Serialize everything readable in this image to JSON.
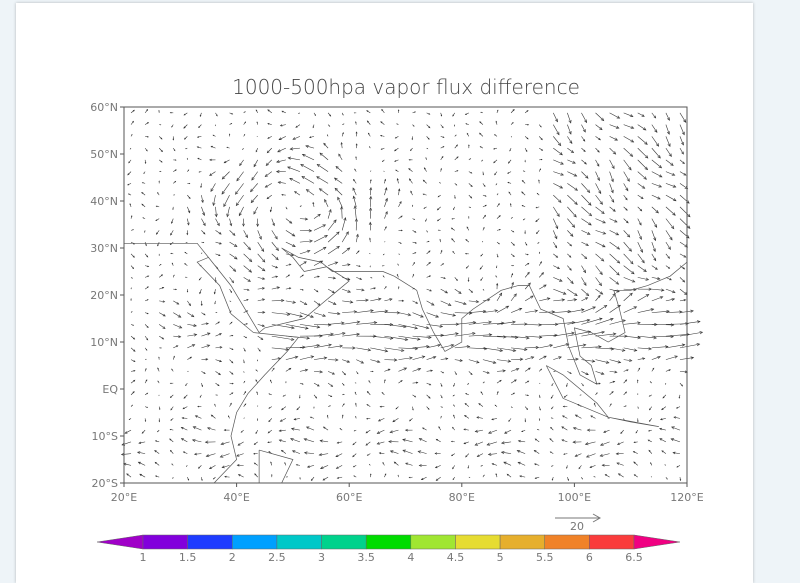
{
  "chart_data": {
    "type": "vector-map",
    "title": "1000-500hpa vapor flux difference",
    "x_ticks": [
      "20°E",
      "40°E",
      "60°E",
      "80°E",
      "100°E",
      "120°E"
    ],
    "y_ticks": [
      "60°N",
      "50°N",
      "40°N",
      "30°N",
      "20°N",
      "10°N",
      "EQ",
      "10°S",
      "20°S"
    ],
    "lon_range": [
      20,
      120
    ],
    "lat_range": [
      -20,
      60
    ],
    "reference_vector": {
      "magnitude": 20,
      "label": "20"
    },
    "colorbar": {
      "levels": [
        "1",
        "1.5",
        "2",
        "2.5",
        "3",
        "3.5",
        "4",
        "4.5",
        "5",
        "5.5",
        "6",
        "6.5"
      ],
      "colors": [
        "#a000c8",
        "#8200dc",
        "#1e3cff",
        "#00a0ff",
        "#00c8c8",
        "#00d28c",
        "#00dc00",
        "#a0e632",
        "#e6dc32",
        "#e6af2d",
        "#f08228",
        "#fa3c3c",
        "#f00082"
      ]
    },
    "grid": false
  }
}
